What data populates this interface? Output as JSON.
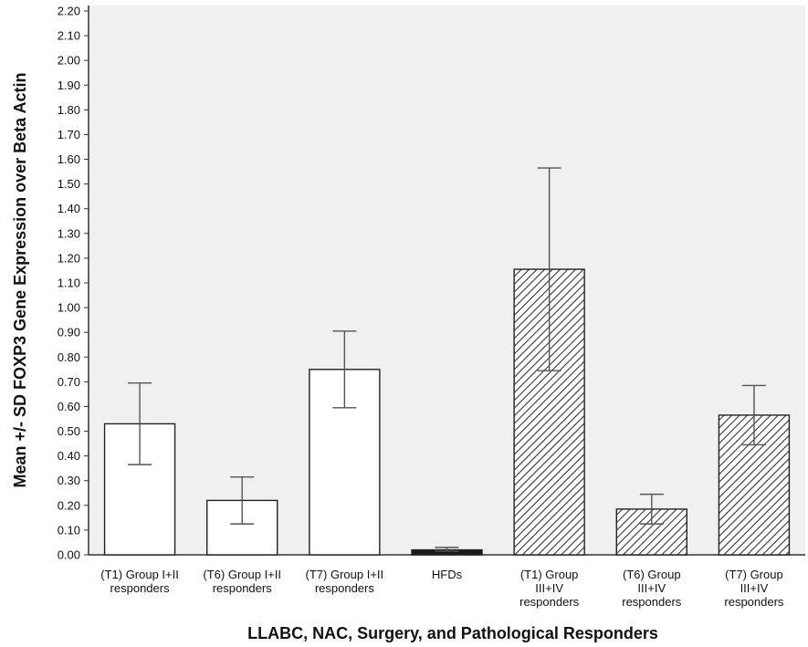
{
  "chart_data": {
    "type": "bar",
    "title": "",
    "xlabel": "LLABC, NAC, Surgery, and Pathological Responders",
    "ylabel": "Mean +/- SD FOXP3 Gene Expression over Beta Actin",
    "ylim": [
      0,
      2.2
    ],
    "ytick_step": 0.1,
    "grid": false,
    "legend": "none",
    "plot_background": "#f0f0f0",
    "categories": [
      [
        "(T1) Group I+II",
        "responders"
      ],
      [
        "(T6) Group I+II",
        "responders"
      ],
      [
        "(T7) Group I+II",
        "responders"
      ],
      [
        "HFDs"
      ],
      [
        "(T1) Group",
        "III+IV",
        "responders"
      ],
      [
        "(T6) Group",
        "III+IV",
        "responders"
      ],
      [
        "(T7) Group",
        "III+IV",
        "responders"
      ]
    ],
    "values": [
      0.53,
      0.22,
      0.75,
      0.02,
      1.155,
      0.185,
      0.565
    ],
    "error_low": [
      0.365,
      0.125,
      0.595,
      0.015,
      0.745,
      0.125,
      0.445
    ],
    "error_high": [
      0.695,
      0.315,
      0.905,
      0.03,
      1.565,
      0.245,
      0.685
    ],
    "fills": [
      "white",
      "white",
      "white",
      "solid",
      "hatched",
      "hatched",
      "hatched"
    ],
    "colors": {
      "bar_fill": "#ffffff",
      "solid_fill": "#1a1a1a",
      "edge": "#222222",
      "error": "#555555",
      "axis": "#333333"
    }
  }
}
